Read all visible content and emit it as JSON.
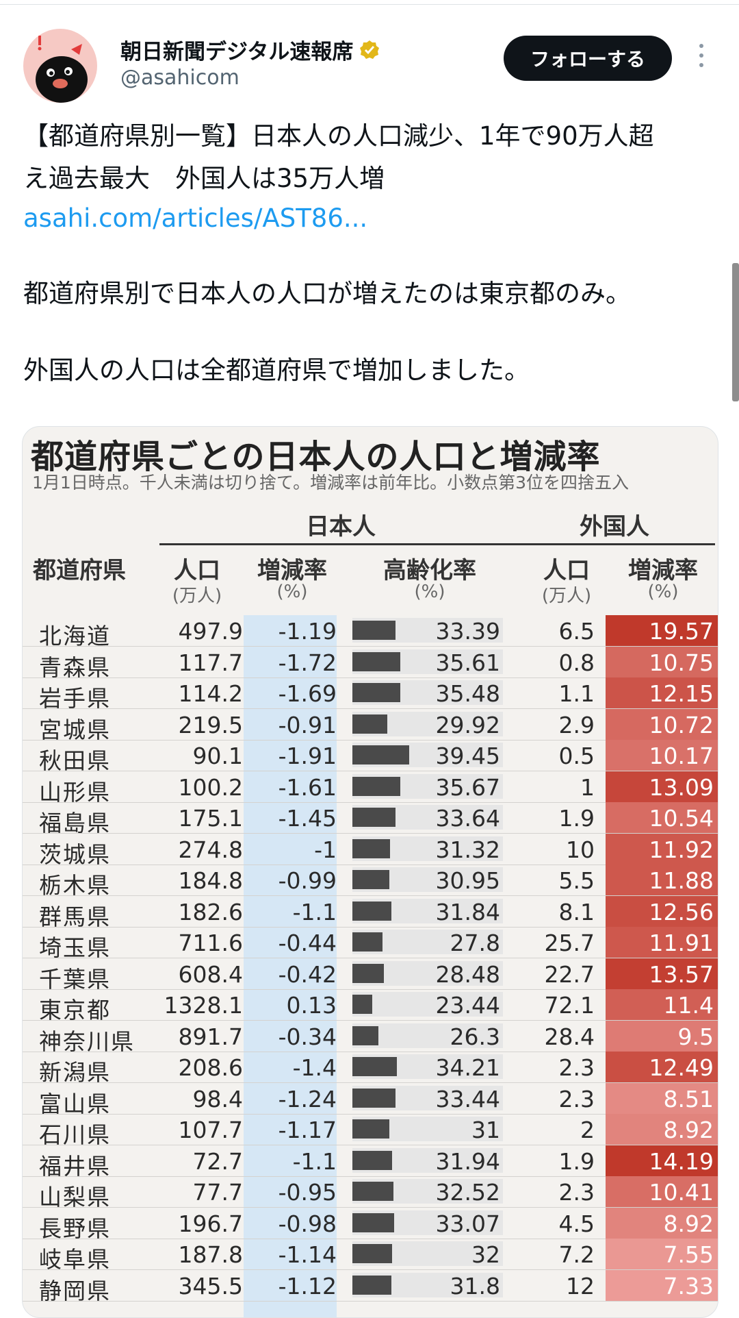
{
  "account": {
    "name": "朝日新聞デジタル速報席",
    "handle": "@asahicom",
    "follow_label": "フォローする"
  },
  "post": {
    "text_line1": "【都道府県別一覧】日本人の人口減少、1年で90万人超",
    "text_line2": "え過去最大　外国人は35万人増",
    "link": "asahi.com/articles/AST86...",
    "para2": "都道府県別で日本人の人口が増えたのは東京都のみ。",
    "para3": "外国人の人口は全都道府県で増加しました。"
  },
  "table": {
    "title": "都道府県ごとの日本人の人口と増減率",
    "subtitle": "1月1日時点。千人未満は切り捨て。増減率は前年比。小数点第3位を四捨五入",
    "group_japanese": "日本人",
    "group_foreign": "外国人",
    "headers": {
      "pref": "都道府県",
      "pop": "人口",
      "pop_unit": "(万人)",
      "rate": "増減率",
      "rate_unit": "(%)",
      "aging": "高齢化率",
      "aging_unit": "(%)",
      "fpop": "人口",
      "fpop_unit": "(万人)",
      "frate": "増減率",
      "frate_unit": "(%)"
    },
    "rows": [
      {
        "pref": "北海道",
        "pop": "497.9",
        "rate": "-1.19",
        "aging": 33.39,
        "fpop": "6.5",
        "frate": 19.57
      },
      {
        "pref": "青森県",
        "pop": "117.7",
        "rate": "-1.72",
        "aging": 35.61,
        "fpop": "0.8",
        "frate": 10.75
      },
      {
        "pref": "岩手県",
        "pop": "114.2",
        "rate": "-1.69",
        "aging": 35.48,
        "fpop": "1.1",
        "frate": 12.15
      },
      {
        "pref": "宮城県",
        "pop": "219.5",
        "rate": "-0.91",
        "aging": 29.92,
        "fpop": "2.9",
        "frate": 10.72
      },
      {
        "pref": "秋田県",
        "pop": "90.1",
        "rate": "-1.91",
        "aging": 39.45,
        "fpop": "0.5",
        "frate": 10.17
      },
      {
        "pref": "山形県",
        "pop": "100.2",
        "rate": "-1.61",
        "aging": 35.67,
        "fpop": "1",
        "frate": 13.09
      },
      {
        "pref": "福島県",
        "pop": "175.1",
        "rate": "-1.45",
        "aging": 33.64,
        "fpop": "1.9",
        "frate": 10.54
      },
      {
        "pref": "茨城県",
        "pop": "274.8",
        "rate": "-1",
        "aging": 31.32,
        "fpop": "10",
        "frate": 11.92
      },
      {
        "pref": "栃木県",
        "pop": "184.8",
        "rate": "-0.99",
        "aging": 30.95,
        "fpop": "5.5",
        "frate": 11.88
      },
      {
        "pref": "群馬県",
        "pop": "182.6",
        "rate": "-1.1",
        "aging": 31.84,
        "fpop": "8.1",
        "frate": 12.56
      },
      {
        "pref": "埼玉県",
        "pop": "711.6",
        "rate": "-0.44",
        "aging": 27.8,
        "fpop": "25.7",
        "frate": 11.91
      },
      {
        "pref": "千葉県",
        "pop": "608.4",
        "rate": "-0.42",
        "aging": 28.48,
        "fpop": "22.7",
        "frate": 13.57
      },
      {
        "pref": "東京都",
        "pop": "1328.1",
        "rate": "0.13",
        "aging": 23.44,
        "fpop": "72.1",
        "frate": 11.4
      },
      {
        "pref": "神奈川県",
        "pop": "891.7",
        "rate": "-0.34",
        "aging": 26.3,
        "fpop": "28.4",
        "frate": 9.5
      },
      {
        "pref": "新潟県",
        "pop": "208.6",
        "rate": "-1.4",
        "aging": 34.21,
        "fpop": "2.3",
        "frate": 12.49
      },
      {
        "pref": "富山県",
        "pop": "98.4",
        "rate": "-1.24",
        "aging": 33.44,
        "fpop": "2.3",
        "frate": 8.51
      },
      {
        "pref": "石川県",
        "pop": "107.7",
        "rate": "-1.17",
        "aging": 31,
        "fpop": "2",
        "frate": 8.92
      },
      {
        "pref": "福井県",
        "pop": "72.7",
        "rate": "-1.1",
        "aging": 31.94,
        "fpop": "1.9",
        "frate": 14.19
      },
      {
        "pref": "山梨県",
        "pop": "77.7",
        "rate": "-0.95",
        "aging": 32.52,
        "fpop": "2.3",
        "frate": 10.41
      },
      {
        "pref": "長野県",
        "pop": "196.7",
        "rate": "-0.98",
        "aging": 33.07,
        "fpop": "4.5",
        "frate": 8.92
      },
      {
        "pref": "岐阜県",
        "pop": "187.8",
        "rate": "-1.14",
        "aging": 32,
        "fpop": "7.2",
        "frate": 7.55
      },
      {
        "pref": "静岡県",
        "pop": "345.5",
        "rate": "-1.12",
        "aging": 31.8,
        "fpop": "12",
        "frate": 7.33
      }
    ]
  },
  "colors": {
    "follow_bg": "#0f1419",
    "link": "#1d9bf0",
    "verified": "#e2b719",
    "negative_rate_bg": "#d6e7f5",
    "foreign_rate_max": "#c0392b",
    "foreign_rate_min": "#f0a8a4",
    "aging_bar": "#4a4a4a"
  }
}
